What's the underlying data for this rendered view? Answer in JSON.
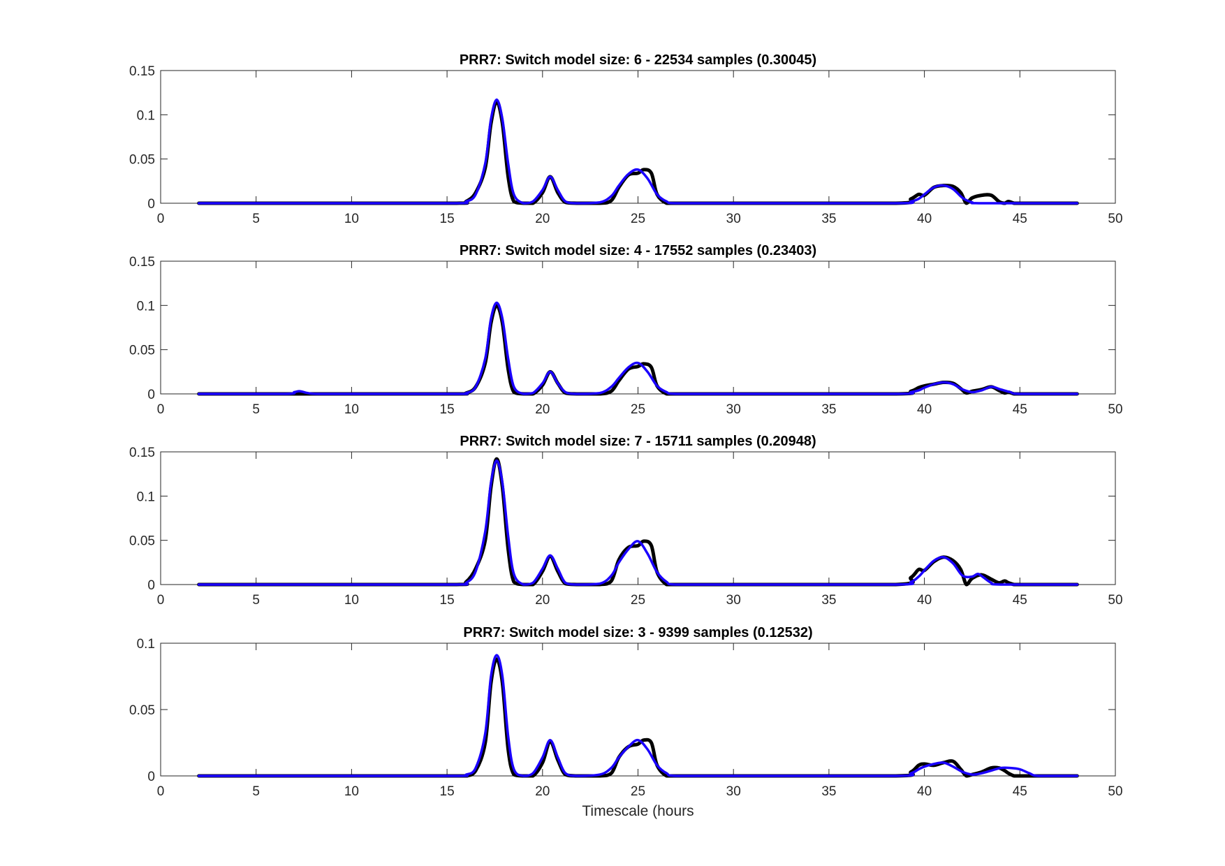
{
  "chart_data": [
    {
      "type": "line",
      "title": "PRR7: Switch model size: 6 - 22534 samples (0.30045)",
      "xlabel": "",
      "ylabel": "",
      "xlim": [
        0,
        50
      ],
      "ylim": [
        0,
        0.15
      ],
      "xticks": [
        "0",
        "5",
        "10",
        "15",
        "20",
        "25",
        "30",
        "35",
        "40",
        "45",
        "50"
      ],
      "yticks": [
        "0",
        "0.05",
        "0.1",
        "0.15"
      ],
      "grid": false,
      "series": [
        {
          "color": "#000000",
          "x": [
            2,
            10,
            15.5,
            16.0,
            16.5,
            17.0,
            17.3,
            17.6,
            17.9,
            18.2,
            18.5,
            19.0,
            19.5,
            20.0,
            20.4,
            20.8,
            21.2,
            21.8,
            23.0,
            23.6,
            24.0,
            24.5,
            25.0,
            25.3,
            25.7,
            26.0,
            26.5,
            27.0,
            30,
            38.5,
            39.3,
            39.7,
            40.0,
            40.5,
            41.0,
            41.5,
            41.9,
            42.2,
            42.5,
            43.0,
            43.5,
            43.9,
            44.2,
            44.4,
            44.7,
            45.0,
            48
          ],
          "y": [
            0,
            0,
            0,
            0.002,
            0.012,
            0.04,
            0.09,
            0.115,
            0.09,
            0.03,
            0.002,
            0,
            0,
            0.012,
            0.03,
            0.012,
            0.001,
            0,
            0,
            0.003,
            0.018,
            0.032,
            0.034,
            0.038,
            0.034,
            0.01,
            0,
            0,
            0,
            0,
            0.005,
            0.01,
            0.009,
            0.018,
            0.02,
            0.019,
            0.012,
            0,
            0.006,
            0.009,
            0.009,
            0.002,
            0,
            0.002,
            0,
            0,
            0
          ]
        },
        {
          "color": "#1a00ff",
          "x": [
            2,
            10,
            15.5,
            16.0,
            16.5,
            17.0,
            17.3,
            17.6,
            17.9,
            18.2,
            18.5,
            19.0,
            19.5,
            20.0,
            20.4,
            20.8,
            21.2,
            21.8,
            23.0,
            23.6,
            24.0,
            24.5,
            25.0,
            25.5,
            26.0,
            26.5,
            27.0,
            30,
            38.5,
            39.3,
            39.7,
            40.0,
            40.5,
            41.0,
            41.5,
            42.0,
            42.5,
            43.0,
            48
          ],
          "y": [
            0,
            0,
            0,
            0.002,
            0.01,
            0.045,
            0.095,
            0.117,
            0.095,
            0.045,
            0.01,
            0,
            0.002,
            0.015,
            0.03,
            0.015,
            0.002,
            0,
            0.001,
            0.008,
            0.02,
            0.033,
            0.038,
            0.028,
            0.01,
            0.002,
            0,
            0,
            0,
            0.002,
            0.005,
            0.01,
            0.018,
            0.02,
            0.016,
            0.006,
            0.001,
            0,
            0
          ]
        }
      ]
    },
    {
      "type": "line",
      "title": "PRR7: Switch model size: 4 - 17552 samples (0.23403)",
      "xlabel": "",
      "ylabel": "",
      "xlim": [
        0,
        50
      ],
      "ylim": [
        0,
        0.15
      ],
      "xticks": [
        "0",
        "5",
        "10",
        "15",
        "20",
        "25",
        "30",
        "35",
        "40",
        "45",
        "50"
      ],
      "yticks": [
        "0",
        "0.05",
        "0.1",
        "0.15"
      ],
      "grid": false,
      "series": [
        {
          "color": "#000000",
          "x": [
            2,
            10,
            15.5,
            16.0,
            16.5,
            17.0,
            17.3,
            17.6,
            17.9,
            18.2,
            18.5,
            19.0,
            19.5,
            20.0,
            20.4,
            20.8,
            21.2,
            21.8,
            23.0,
            23.6,
            24.0,
            24.5,
            25.0,
            25.3,
            25.7,
            26.0,
            26.5,
            27.0,
            30,
            38.5,
            39.3,
            39.7,
            40.0,
            40.5,
            41.0,
            41.5,
            41.9,
            42.2,
            42.5,
            43.0,
            43.5,
            43.9,
            44.2,
            44.4,
            44.7,
            45.0,
            48
          ],
          "y": [
            0,
            0,
            0,
            0.001,
            0.008,
            0.035,
            0.08,
            0.1,
            0.08,
            0.028,
            0.002,
            0,
            0,
            0.01,
            0.025,
            0.012,
            0.001,
            0,
            0,
            0.003,
            0.015,
            0.028,
            0.031,
            0.034,
            0.03,
            0.009,
            0,
            0,
            0,
            0,
            0.003,
            0.007,
            0.009,
            0.011,
            0.013,
            0.012,
            0.006,
            0.001,
            0.003,
            0.005,
            0.008,
            0.004,
            0.001,
            0.002,
            0,
            0,
            0
          ]
        },
        {
          "color": "#1a00ff",
          "x": [
            2,
            6.5,
            7.0,
            7.3,
            7.7,
            8.2,
            10,
            15.5,
            16.0,
            16.5,
            17.0,
            17.3,
            17.6,
            17.9,
            18.2,
            18.5,
            19.0,
            19.5,
            20.0,
            20.4,
            20.8,
            21.2,
            21.8,
            23.0,
            23.6,
            24.0,
            24.5,
            25.0,
            25.5,
            26.0,
            26.5,
            27.0,
            30,
            38.5,
            39.3,
            39.7,
            40.0,
            40.5,
            41.0,
            41.5,
            42.0,
            42.5,
            43.0,
            43.5,
            44.0,
            44.5,
            45.0,
            48
          ],
          "y": [
            0,
            0,
            0.002,
            0.003,
            0.001,
            0,
            0,
            0,
            0.001,
            0.008,
            0.04,
            0.085,
            0.103,
            0.085,
            0.04,
            0.008,
            0,
            0.001,
            0.012,
            0.025,
            0.012,
            0.002,
            0,
            0.001,
            0.008,
            0.018,
            0.03,
            0.035,
            0.025,
            0.009,
            0.002,
            0,
            0,
            0,
            0.002,
            0.004,
            0.007,
            0.011,
            0.013,
            0.011,
            0.005,
            0.002,
            0.004,
            0.008,
            0.005,
            0.002,
            0,
            0
          ]
        }
      ]
    },
    {
      "type": "line",
      "title": "PRR7: Switch model size: 7 - 15711 samples (0.20948)",
      "xlabel": "",
      "ylabel": "",
      "xlim": [
        0,
        50
      ],
      "ylim": [
        0,
        0.15
      ],
      "xticks": [
        "0",
        "5",
        "10",
        "15",
        "20",
        "25",
        "30",
        "35",
        "40",
        "45",
        "50"
      ],
      "yticks": [
        "0",
        "0.05",
        "0.1",
        "0.15"
      ],
      "grid": false,
      "series": [
        {
          "color": "#000000",
          "x": [
            2,
            10,
            15.5,
            16.0,
            16.5,
            17.0,
            17.3,
            17.6,
            17.9,
            18.2,
            18.5,
            19.0,
            19.5,
            20.0,
            20.4,
            20.8,
            21.2,
            21.8,
            23.0,
            23.6,
            24.0,
            24.5,
            25.0,
            25.3,
            25.7,
            26.0,
            26.5,
            27.0,
            30,
            38.5,
            39.3,
            39.7,
            40.0,
            40.5,
            41.0,
            41.5,
            41.9,
            42.2,
            42.5,
            43.0,
            43.5,
            43.9,
            44.2,
            44.4,
            44.7,
            45.0,
            48
          ],
          "y": [
            0,
            0,
            0,
            0.003,
            0.018,
            0.05,
            0.11,
            0.142,
            0.11,
            0.04,
            0.003,
            0,
            0,
            0.015,
            0.032,
            0.015,
            0.001,
            0,
            0,
            0.004,
            0.028,
            0.042,
            0.044,
            0.049,
            0.044,
            0.014,
            0,
            0,
            0,
            0,
            0.008,
            0.017,
            0.016,
            0.026,
            0.031,
            0.027,
            0.017,
            0,
            0.007,
            0.011,
            0.006,
            0.002,
            0.004,
            0.002,
            0,
            0,
            0
          ]
        },
        {
          "color": "#1a00ff",
          "x": [
            2,
            10,
            15.5,
            16.0,
            16.5,
            17.0,
            17.3,
            17.6,
            17.9,
            18.2,
            18.5,
            19.0,
            19.5,
            20.0,
            20.4,
            20.8,
            21.2,
            21.8,
            23.0,
            23.6,
            24.0,
            24.5,
            25.0,
            25.5,
            26.0,
            26.5,
            27.0,
            30,
            38.5,
            39.3,
            39.7,
            40.0,
            40.5,
            41.0,
            41.5,
            42.0,
            42.5,
            42.8,
            43.1,
            43.5,
            44.0,
            48
          ],
          "y": [
            0,
            0,
            0,
            0.002,
            0.015,
            0.06,
            0.115,
            0.14,
            0.115,
            0.055,
            0.012,
            0,
            0.002,
            0.018,
            0.033,
            0.018,
            0.002,
            0,
            0.001,
            0.01,
            0.025,
            0.04,
            0.049,
            0.035,
            0.014,
            0.003,
            0,
            0,
            0,
            0.003,
            0.009,
            0.016,
            0.027,
            0.031,
            0.024,
            0.01,
            0.009,
            0.012,
            0.008,
            0.002,
            0,
            0
          ]
        }
      ]
    },
    {
      "type": "line",
      "title": "PRR7: Switch model size: 3 - 9399 samples (0.12532)",
      "xlabel": "Timescale (hours",
      "ylabel": "",
      "xlim": [
        0,
        50
      ],
      "ylim": [
        0,
        0.1
      ],
      "xticks": [
        "0",
        "5",
        "10",
        "15",
        "20",
        "25",
        "30",
        "35",
        "40",
        "45",
        "50"
      ],
      "yticks": [
        "0",
        "0.05",
        "0.1"
      ],
      "grid": false,
      "series": [
        {
          "color": "#000000",
          "x": [
            2,
            10,
            15.5,
            16.0,
            16.5,
            17.0,
            17.3,
            17.6,
            17.9,
            18.2,
            18.5,
            19.0,
            19.5,
            20.0,
            20.4,
            20.8,
            21.2,
            21.8,
            23.0,
            23.6,
            24.0,
            24.5,
            25.0,
            25.3,
            25.7,
            26.0,
            26.5,
            27.0,
            30,
            38.5,
            39.3,
            39.7,
            40.0,
            40.5,
            41.0,
            41.5,
            41.9,
            42.2,
            42.5,
            43.0,
            43.5,
            43.9,
            44.2,
            44.4,
            44.7,
            45.0,
            48
          ],
          "y": [
            0,
            0,
            0,
            0,
            0.004,
            0.025,
            0.07,
            0.088,
            0.07,
            0.02,
            0.001,
            0,
            0,
            0.01,
            0.026,
            0.012,
            0.001,
            0,
            0,
            0.002,
            0.014,
            0.022,
            0.024,
            0.027,
            0.025,
            0.008,
            0,
            0,
            0,
            0,
            0.003,
            0.008,
            0.009,
            0.008,
            0.01,
            0.011,
            0.005,
            0,
            0.001,
            0.003,
            0.006,
            0.006,
            0.004,
            0.002,
            0,
            0,
            0
          ]
        },
        {
          "color": "#1a00ff",
          "x": [
            2,
            10,
            15.5,
            16.0,
            16.5,
            17.0,
            17.3,
            17.6,
            17.9,
            18.2,
            18.5,
            19.0,
            19.5,
            20.0,
            20.4,
            20.8,
            21.2,
            21.8,
            23.0,
            23.6,
            24.0,
            24.5,
            25.0,
            25.5,
            26.0,
            26.5,
            27.0,
            30,
            38.5,
            39.3,
            39.7,
            40.0,
            40.5,
            41.0,
            41.5,
            42.0,
            42.5,
            43.0,
            43.5,
            44.0,
            44.5,
            45.0,
            45.5,
            46.0,
            48
          ],
          "y": [
            0,
            0,
            0,
            0.001,
            0.006,
            0.032,
            0.075,
            0.091,
            0.075,
            0.03,
            0.005,
            0,
            0.002,
            0.014,
            0.027,
            0.014,
            0.002,
            0,
            0.001,
            0.006,
            0.014,
            0.022,
            0.027,
            0.02,
            0.008,
            0.002,
            0,
            0,
            0,
            0.002,
            0.005,
            0.007,
            0.009,
            0.01,
            0.007,
            0.003,
            0.001,
            0.002,
            0.004,
            0.006,
            0.006,
            0.005,
            0.002,
            0,
            0
          ]
        }
      ]
    }
  ]
}
